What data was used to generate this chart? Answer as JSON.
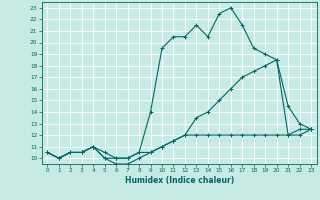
{
  "xlabel": "Humidex (Indice chaleur)",
  "xlim": [
    -0.5,
    23.5
  ],
  "ylim": [
    9.5,
    23.5
  ],
  "xticks": [
    0,
    1,
    2,
    3,
    4,
    5,
    6,
    7,
    8,
    9,
    10,
    11,
    12,
    13,
    14,
    15,
    16,
    17,
    18,
    19,
    20,
    21,
    22,
    23
  ],
  "yticks": [
    10,
    11,
    12,
    13,
    14,
    15,
    16,
    17,
    18,
    19,
    20,
    21,
    22,
    23
  ],
  "bg_color": "#c8eae4",
  "grid_color": "#ffffff",
  "line_color": "#006666",
  "curve1_x": [
    0,
    1,
    2,
    3,
    4,
    5,
    6,
    7,
    8,
    9,
    10,
    11,
    12,
    13,
    14,
    15,
    16,
    17,
    18,
    19,
    20,
    21,
    22,
    23
  ],
  "curve1_y": [
    10.5,
    10.0,
    10.5,
    10.5,
    11.0,
    10.0,
    10.0,
    10.0,
    10.5,
    14.0,
    19.5,
    20.5,
    20.5,
    21.5,
    20.5,
    22.5,
    23.0,
    21.5,
    19.5,
    19.0,
    18.5,
    14.5,
    13.0,
    12.5
  ],
  "curve2_x": [
    0,
    1,
    2,
    3,
    4,
    5,
    6,
    7,
    8,
    9,
    10,
    11,
    12,
    13,
    14,
    15,
    16,
    17,
    18,
    19,
    20,
    21,
    22,
    23
  ],
  "curve2_y": [
    10.5,
    10.0,
    10.5,
    10.5,
    11.0,
    10.5,
    10.0,
    10.0,
    10.5,
    10.5,
    11.0,
    11.5,
    12.0,
    13.5,
    14.0,
    15.0,
    16.0,
    17.0,
    17.5,
    18.0,
    18.5,
    12.0,
    12.5,
    12.5
  ],
  "curve3_x": [
    0,
    1,
    2,
    3,
    4,
    5,
    6,
    7,
    8,
    9,
    10,
    11,
    12,
    13,
    14,
    15,
    16,
    17,
    18,
    19,
    20,
    21,
    22,
    23
  ],
  "curve3_y": [
    10.5,
    10.0,
    10.5,
    10.5,
    11.0,
    10.0,
    9.5,
    9.5,
    10.0,
    10.5,
    11.0,
    11.5,
    12.0,
    12.0,
    12.0,
    12.0,
    12.0,
    12.0,
    12.0,
    12.0,
    12.0,
    12.0,
    12.0,
    12.5
  ],
  "tick_fontsize": 4.2,
  "xlabel_fontsize": 5.5
}
